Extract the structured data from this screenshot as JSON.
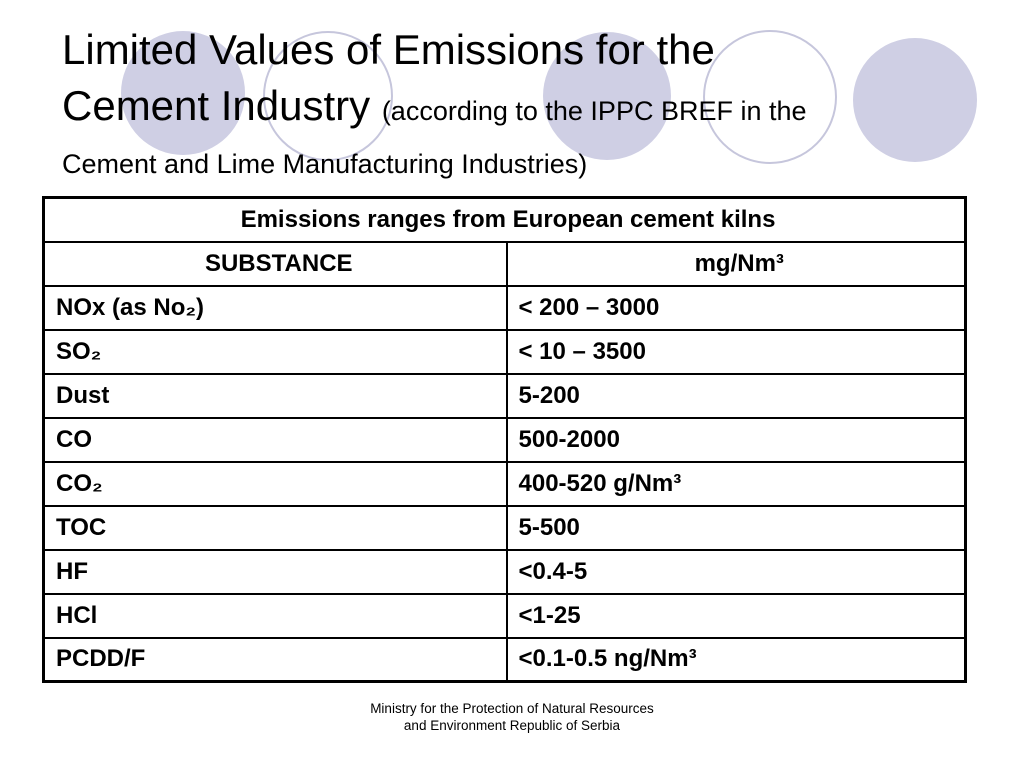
{
  "slide": {
    "title": {
      "line1": "Limited Values of Emissions for the",
      "line2_main": "Cement Industry ",
      "line2_note": "(according to the IPPC BREF in the",
      "line3_note": "Cement and Lime Manufacturing Industries)"
    },
    "table": {
      "caption": "Emissions ranges from European cement kilns",
      "columns": [
        "SUBSTANCE",
        "mg/Nm³"
      ],
      "rows": [
        {
          "substance": "NOx (as No₂)",
          "value": "< 200 – 3000"
        },
        {
          "substance": "SO₂",
          "value": "< 10 – 3500"
        },
        {
          "substance": "Dust",
          "value": "5-200"
        },
        {
          "substance": "CO",
          "value": "500-2000"
        },
        {
          "substance": "CO₂",
          "value": "400-520 g/Nm³"
        },
        {
          "substance": "TOC",
          "value": "5-500"
        },
        {
          "substance": "HF",
          "value": "<0.4-5"
        },
        {
          "substance": "HCl",
          "value": "<1-25"
        },
        {
          "substance": "PCDD/F",
          "value": "<0.1-0.5 ng/Nm³"
        }
      ]
    },
    "footer": {
      "line1": "Ministry for the Protection of Natural Resources",
      "line2": "and Environment Republic of Serbia"
    },
    "colors": {
      "background": "#ffffff",
      "text": "#000000",
      "table_border": "#000000",
      "circle_fill": "#cfcfe4",
      "circle_stroke": "#c6c6dc"
    }
  }
}
